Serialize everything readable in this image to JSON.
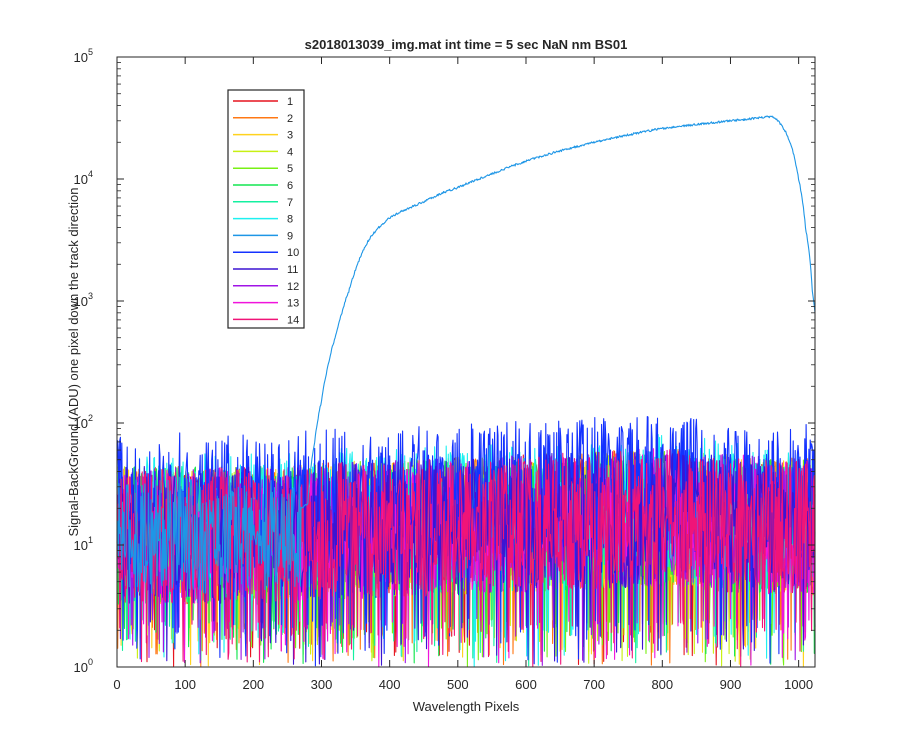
{
  "chart_data": {
    "type": "line",
    "title": "s2018013039_img.mat int time = 5 sec  NaN nm BS01",
    "xlabel": "Wavelength Pixels",
    "ylabel": "Signal-BackGround (ADU) one pixel down the track direction",
    "xlim": [
      0,
      1024
    ],
    "ylim": [
      1,
      100000
    ],
    "yscale": "log",
    "grid": false,
    "legend_position": "top-left",
    "x_ticks": [
      {
        "value": 0,
        "label": "0"
      },
      {
        "value": 100,
        "label": "100"
      },
      {
        "value": 200,
        "label": "200"
      },
      {
        "value": 300,
        "label": "300"
      },
      {
        "value": 400,
        "label": "400"
      },
      {
        "value": 500,
        "label": "500"
      },
      {
        "value": 600,
        "label": "600"
      },
      {
        "value": 700,
        "label": "700"
      },
      {
        "value": 800,
        "label": "800"
      },
      {
        "value": 900,
        "label": "900"
      },
      {
        "value": 1000,
        "label": "1000"
      }
    ],
    "y_ticks": [
      {
        "value": 1,
        "base": "10",
        "exp": "0"
      },
      {
        "value": 10,
        "base": "10",
        "exp": "1"
      },
      {
        "value": 100,
        "base": "10",
        "exp": "2"
      },
      {
        "value": 1000,
        "base": "10",
        "exp": "3"
      },
      {
        "value": 10000,
        "base": "10",
        "exp": "4"
      },
      {
        "value": 100000,
        "base": "10",
        "exp": "5"
      }
    ],
    "noise_series_levels": [
      {
        "x": [
          0,
          250,
          300,
          450,
          600,
          700,
          800,
          900,
          1024
        ],
        "y": [
          12,
          12,
          13,
          14,
          15,
          16,
          17,
          15,
          14
        ]
      }
    ],
    "series": [
      {
        "name": "1",
        "color": "#e6141e",
        "noise_amplitude": 1.0
      },
      {
        "name": "2",
        "color": "#ff7814",
        "noise_amplitude": 1.0
      },
      {
        "name": "3",
        "color": "#ffd21e",
        "noise_amplitude": 1.0
      },
      {
        "name": "4",
        "color": "#c8f014",
        "noise_amplitude": 1.0
      },
      {
        "name": "5",
        "color": "#78f014",
        "noise_amplitude": 1.0
      },
      {
        "name": "6",
        "color": "#14e650",
        "noise_amplitude": 1.0
      },
      {
        "name": "7",
        "color": "#14f0a0",
        "noise_amplitude": 1.0
      },
      {
        "name": "8",
        "color": "#1ef0f0",
        "noise_amplitude": 2.0
      },
      {
        "name": "9",
        "color": "#1e96e6",
        "x": [
          270,
          280,
          290,
          300,
          310,
          320,
          330,
          340,
          350,
          360,
          370,
          380,
          390,
          400,
          420,
          450,
          480,
          500,
          550,
          600,
          650,
          700,
          750,
          800,
          850,
          900,
          950,
          960,
          970,
          980,
          990,
          1000,
          1010,
          1020,
          1024
        ],
        "y": [
          20,
          22,
          70,
          150,
          300,
          500,
          800,
          1200,
          1800,
          2500,
          3200,
          3800,
          4300,
          4800,
          5500,
          6500,
          7800,
          8500,
          11000,
          14000,
          17000,
          20000,
          23000,
          26000,
          28000,
          30000,
          32000,
          32500,
          30000,
          25000,
          18000,
          10000,
          4000,
          1200,
          800
        ]
      },
      {
        "name": "10",
        "color": "#1432ff",
        "noise_amplitude": 3.6
      },
      {
        "name": "11",
        "color": "#3c14d2",
        "noise_amplitude": 1.5
      },
      {
        "name": "12",
        "color": "#a014e6",
        "noise_amplitude": 1.0
      },
      {
        "name": "13",
        "color": "#f014dc",
        "noise_amplitude": 1.0
      },
      {
        "name": "14",
        "color": "#f01478",
        "noise_amplitude": 1.0
      }
    ]
  }
}
